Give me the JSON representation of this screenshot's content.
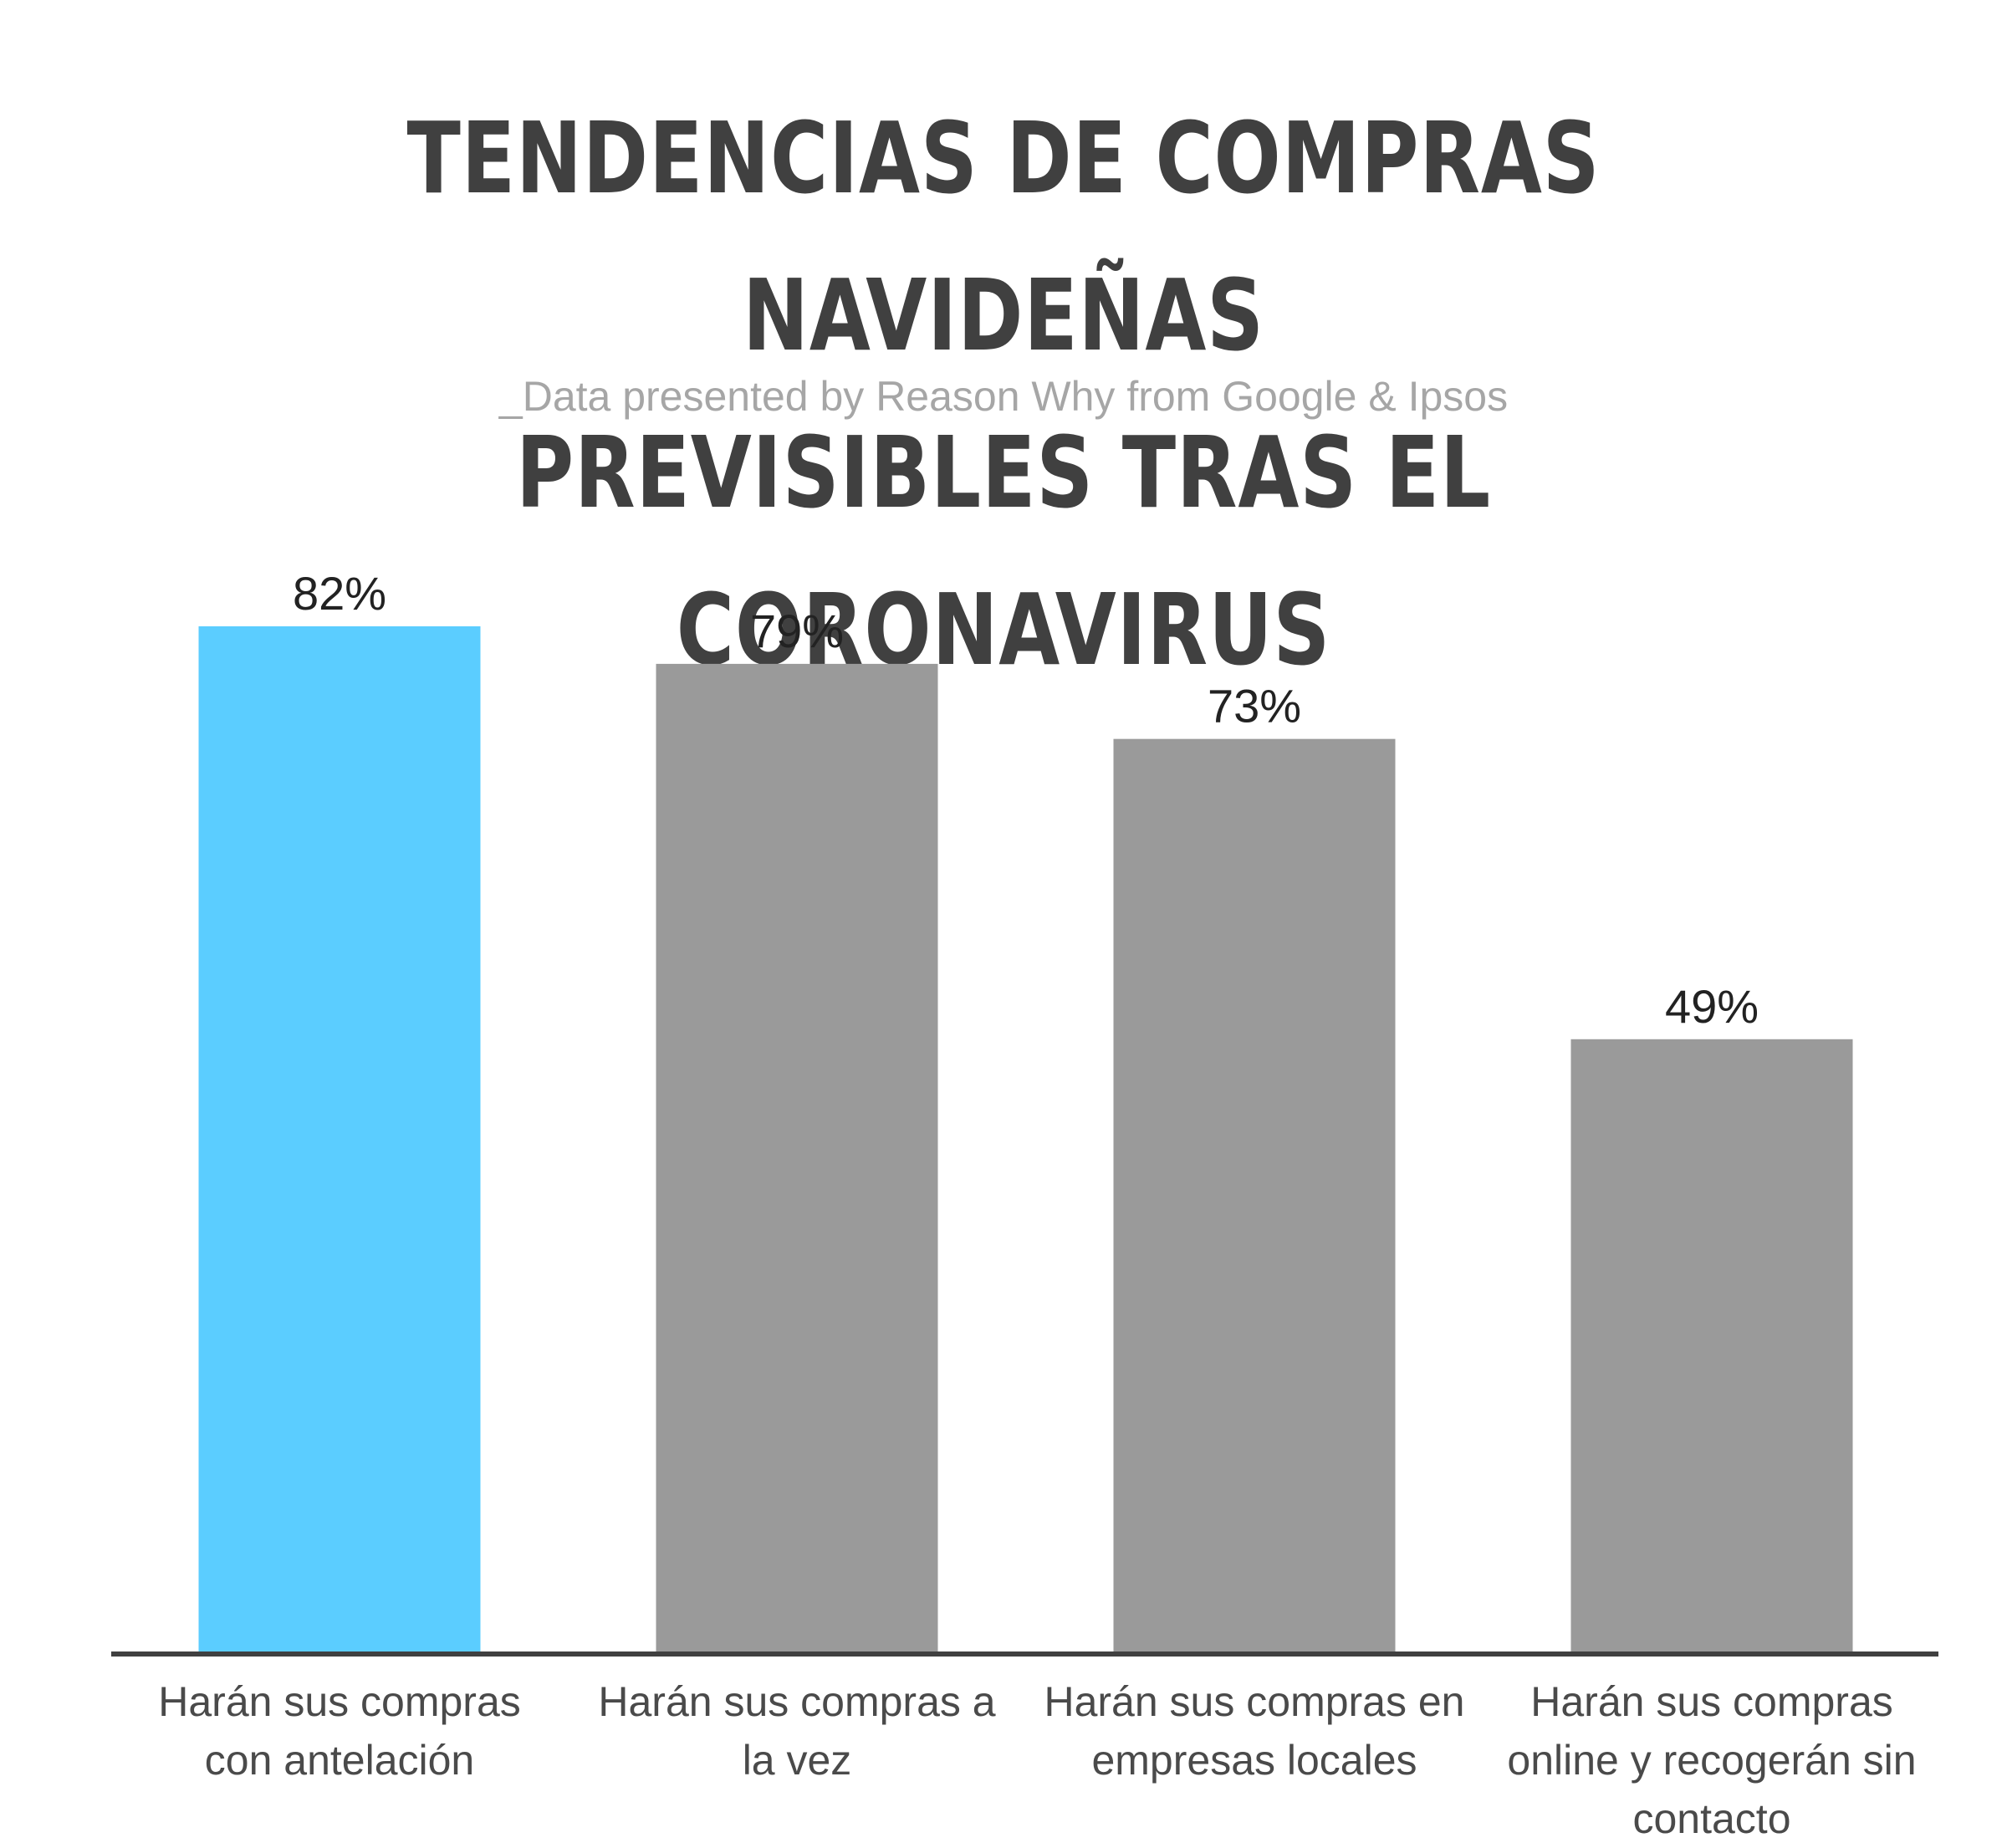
{
  "title_line1": "TENDENCIAS DE COMPRAS NAVIDEÑAS",
  "title_line2": "PREVISIBLES TRAS EL CORONAVIRUS",
  "subtitle": "_Data presented by Reason Why from Google & Ipsos",
  "colors": {
    "highlight": "#5bcdff",
    "default": "#9a9a9a",
    "axis": "#404040"
  },
  "chart_data": {
    "type": "bar",
    "title": "TENDENCIAS DE COMPRAS NAVIDEÑAS PREVISIBLES TRAS EL CORONAVIRUS",
    "subtitle": "_Data presented by Reason Why from Google & Ipsos",
    "categories": [
      "Harán sus compras con antelación",
      "Harán sus compras a la vez",
      "Harán sus compras en empresas locales",
      "Harán sus compras online y recogerán sin contacto"
    ],
    "values": [
      82,
      79,
      73,
      49
    ],
    "value_labels": [
      "82%",
      "79%",
      "73%",
      "49%"
    ],
    "highlighted_index": 0,
    "ylim": [
      0,
      100
    ],
    "grid": false,
    "legend": "none"
  }
}
